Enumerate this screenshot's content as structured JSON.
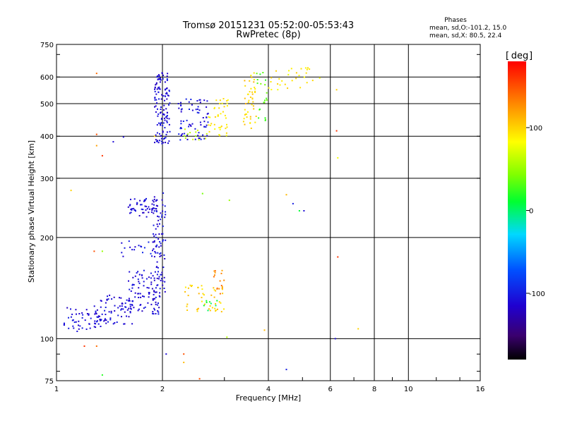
{
  "chart_data": {
    "type": "scatter",
    "title": "Tromsø 20151231 05:52:00-05:53:43",
    "subtitle": "RwPretec (8p)",
    "stats": {
      "heading": "Phases",
      "line1": "mean, sd,O:-101.2, 15.0",
      "line2": "mean, sd,X:  80.5, 22.4"
    },
    "xlabel": "Frequency [MHz]",
    "ylabel": "Stationary phase Virtual Height [km]",
    "x_scale": "log",
    "y_scale": "log",
    "xlim": [
      1,
      16
    ],
    "ylim": [
      75,
      750
    ],
    "x_ticks": [
      1,
      2,
      4,
      6,
      8,
      10,
      16
    ],
    "x_tick_labels": [
      "1",
      "2",
      "4",
      "6",
      "8",
      "10",
      "16"
    ],
    "y_ticks": [
      75,
      100,
      200,
      300,
      400,
      500,
      600,
      750
    ],
    "y_tick_labels": [
      "75",
      "100",
      "200",
      "300",
      "400",
      "500",
      "600",
      "750"
    ],
    "grid": true,
    "colorbar": {
      "unit": "deg",
      "range": [
        -180,
        180
      ],
      "ticks": [
        100,
        0,
        -100
      ],
      "tick_labels": [
        "100",
        "0",
        "-100"
      ]
    },
    "point_color_phase": "degrees",
    "clusters": [
      {
        "x": [
          1.05,
          1.35
        ],
        "y": [
          105,
          125
        ],
        "phase": -110,
        "n": 55
      },
      {
        "x": [
          1.3,
          1.65
        ],
        "y": [
          110,
          135
        ],
        "phase": -110,
        "n": 70
      },
      {
        "x": [
          1.6,
          1.98
        ],
        "y": [
          118,
          160
        ],
        "phase": -110,
        "n": 90
      },
      {
        "x": [
          1.88,
          2.05
        ],
        "y": [
          130,
          280
        ],
        "phase": -110,
        "n": 80
      },
      {
        "x": [
          1.5,
          1.98
        ],
        "y": [
          175,
          195
        ],
        "phase": -105,
        "n": 25
      },
      {
        "x": [
          1.6,
          1.95
        ],
        "y": [
          230,
          262
        ],
        "phase": -110,
        "n": 55
      },
      {
        "x": [
          1.9,
          2.1
        ],
        "y": [
          380,
          620
        ],
        "phase": -110,
        "n": 130
      },
      {
        "x": [
          2.2,
          2.7
        ],
        "y": [
          390,
          520
        ],
        "phase": -105,
        "n": 70
      },
      {
        "x": [
          2.3,
          2.7
        ],
        "y": [
          390,
          420
        ],
        "phase": 60,
        "n": 12
      },
      {
        "x": [
          2.7,
          3.1
        ],
        "y": [
          400,
          520
        ],
        "phase": 90,
        "n": 40
      },
      {
        "x": [
          3.4,
          3.7
        ],
        "y": [
          420,
          620
        ],
        "phase": 100,
        "n": 45
      },
      {
        "x": [
          3.7,
          4.0
        ],
        "y": [
          440,
          620
        ],
        "phase": 30,
        "n": 20
      },
      {
        "x": [
          4.0,
          5.6
        ],
        "y": [
          550,
          640
        ],
        "phase": 90,
        "n": 30
      },
      {
        "x": [
          2.3,
          3.0
        ],
        "y": [
          120,
          145
        ],
        "phase": 100,
        "n": 45
      },
      {
        "x": [
          2.8,
          3.0
        ],
        "y": [
          135,
          160
        ],
        "phase": 130,
        "n": 15
      },
      {
        "x": [
          2.6,
          2.9
        ],
        "y": [
          120,
          130
        ],
        "phase": 10,
        "n": 8
      }
    ],
    "scattered_points": [
      {
        "x": 1.3,
        "y": 615,
        "phase": 140
      },
      {
        "x": 1.3,
        "y": 405,
        "phase": 150
      },
      {
        "x": 1.3,
        "y": 375,
        "phase": 120
      },
      {
        "x": 1.35,
        "y": 350,
        "phase": 160
      },
      {
        "x": 1.45,
        "y": 385,
        "phase": -110
      },
      {
        "x": 1.55,
        "y": 398,
        "phase": -110
      },
      {
        "x": 1.3,
        "y": 95,
        "phase": 140
      },
      {
        "x": 1.2,
        "y": 95,
        "phase": 160
      },
      {
        "x": 1.35,
        "y": 78,
        "phase": 20
      },
      {
        "x": 1.28,
        "y": 182,
        "phase": 150
      },
      {
        "x": 1.35,
        "y": 182,
        "phase": 50
      },
      {
        "x": 1.1,
        "y": 276,
        "phase": 100
      },
      {
        "x": 2.3,
        "y": 90,
        "phase": 150
      },
      {
        "x": 2.3,
        "y": 85,
        "phase": 110
      },
      {
        "x": 2.55,
        "y": 76,
        "phase": 150
      },
      {
        "x": 2.05,
        "y": 90,
        "phase": -110
      },
      {
        "x": 2.6,
        "y": 270,
        "phase": 40
      },
      {
        "x": 3.1,
        "y": 258,
        "phase": 50
      },
      {
        "x": 3.05,
        "y": 101,
        "phase": 60
      },
      {
        "x": 3.9,
        "y": 106,
        "phase": 110
      },
      {
        "x": 4.5,
        "y": 268,
        "phase": 110
      },
      {
        "x": 4.7,
        "y": 252,
        "phase": -100
      },
      {
        "x": 4.9,
        "y": 240,
        "phase": 10
      },
      {
        "x": 5.05,
        "y": 240,
        "phase": -110
      },
      {
        "x": 6.25,
        "y": 550,
        "phase": 100
      },
      {
        "x": 6.25,
        "y": 415,
        "phase": 160
      },
      {
        "x": 6.3,
        "y": 345,
        "phase": 80
      },
      {
        "x": 6.3,
        "y": 175,
        "phase": 160
      },
      {
        "x": 7.2,
        "y": 107,
        "phase": 100
      },
      {
        "x": 6.2,
        "y": 100,
        "phase": -110
      },
      {
        "x": 4.5,
        "y": 81,
        "phase": -100
      },
      {
        "x": 1.9,
        "y": 400,
        "phase": 100
      }
    ]
  }
}
